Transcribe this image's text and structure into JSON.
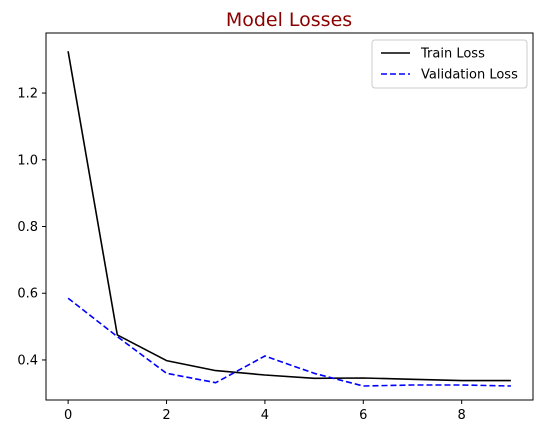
{
  "chart_data": {
    "type": "line",
    "title": "Model Losses",
    "title_color": "#8B0000",
    "xlabel": "",
    "ylabel": "",
    "xlim": [
      -0.45,
      9.45
    ],
    "ylim": [
      0.28,
      1.38
    ],
    "x_ticks": [
      0,
      2,
      4,
      6,
      8
    ],
    "y_ticks": [
      0.4,
      0.6,
      0.8,
      1.0,
      1.2
    ],
    "y_tick_labels": [
      "0.4",
      "0.6",
      "0.8",
      "1.0",
      "1.2"
    ],
    "grid": false,
    "legend_position": "top-right",
    "x": [
      0,
      1,
      2,
      3,
      4,
      5,
      6,
      7,
      8,
      9
    ],
    "series": [
      {
        "name": "Train Loss",
        "color": "#000000",
        "style": "solid",
        "values": [
          1.325,
          0.475,
          0.398,
          0.368,
          0.355,
          0.345,
          0.346,
          0.342,
          0.338,
          0.338
        ]
      },
      {
        "name": "Validation Loss",
        "color": "#0000FF",
        "style": "dashed",
        "values": [
          0.585,
          0.47,
          0.36,
          0.332,
          0.412,
          0.36,
          0.322,
          0.325,
          0.325,
          0.322
        ]
      }
    ]
  }
}
